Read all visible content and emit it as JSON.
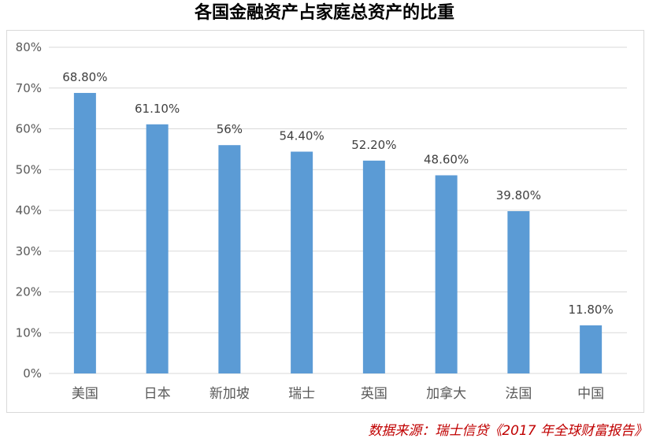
{
  "chart_data": {
    "type": "bar",
    "title": "各国金融资产占家庭总资产的比重",
    "categories": [
      "美国",
      "日本",
      "新加坡",
      "瑞士",
      "英国",
      "加拿大",
      "法国",
      "中国"
    ],
    "values": [
      68.8,
      61.1,
      56,
      54.4,
      52.2,
      48.6,
      39.8,
      11.8
    ],
    "data_labels": [
      "68.80%",
      "61.10%",
      "56%",
      "54.40%",
      "52.20%",
      "48.60%",
      "39.80%",
      "11.80%"
    ],
    "y_ticks": [
      "0%",
      "10%",
      "20%",
      "30%",
      "40%",
      "50%",
      "60%",
      "70%",
      "80%"
    ],
    "ylim": [
      0,
      80
    ],
    "grid": true,
    "bar_color": "#5b9bd5",
    "grid_color": "#d9d9d9"
  },
  "source_note": "数据来源：瑞士信贷《2017 年全球财富报告》",
  "source_color": "#c00000"
}
